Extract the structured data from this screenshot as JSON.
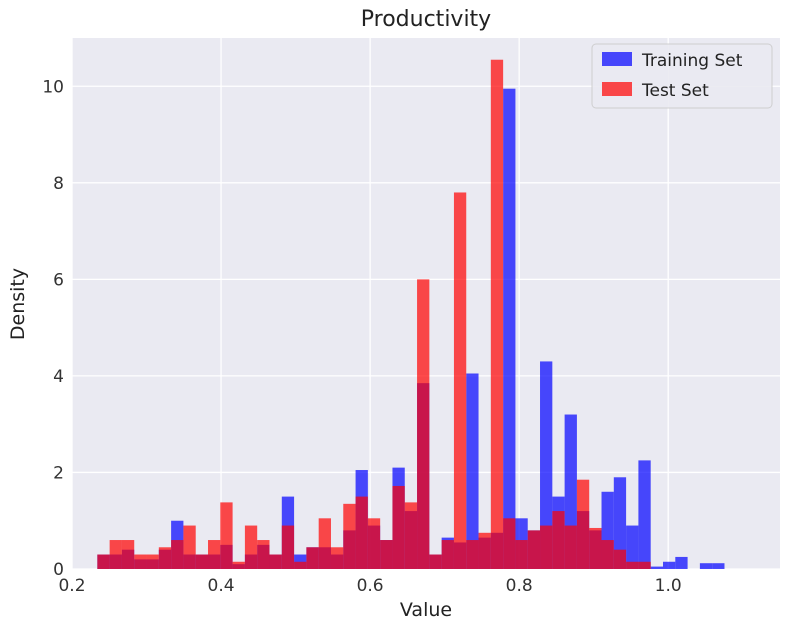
{
  "chart_data": {
    "type": "bar",
    "title": "Productivity",
    "xlabel": "Value",
    "ylabel": "Density",
    "xlim": [
      0.2,
      1.15
    ],
    "ylim": [
      0,
      11
    ],
    "x_ticks": [
      0.2,
      0.4,
      0.6,
      0.8,
      1.0
    ],
    "x_tick_labels": [
      "0.2",
      "0.4",
      "0.6",
      "0.8",
      "1.0"
    ],
    "y_ticks": [
      0,
      2,
      4,
      6,
      8,
      10
    ],
    "y_tick_labels": [
      "0",
      "2",
      "4",
      "6",
      "8",
      "10"
    ],
    "grid": true,
    "legend_position": "top-right",
    "bin_width": 0.0165,
    "bin_starts": [
      0.234,
      0.2505,
      0.267,
      0.2835,
      0.3,
      0.3165,
      0.333,
      0.3495,
      0.366,
      0.3825,
      0.399,
      0.4155,
      0.432,
      0.4485,
      0.465,
      0.4815,
      0.498,
      0.5145,
      0.531,
      0.5475,
      0.564,
      0.5805,
      0.597,
      0.6135,
      0.63,
      0.6465,
      0.663,
      0.6795,
      0.696,
      0.7125,
      0.729,
      0.7455,
      0.762,
      0.7785,
      0.795,
      0.8115,
      0.828,
      0.8445,
      0.861,
      0.8775,
      0.894,
      0.9105,
      0.927,
      0.9435,
      0.96,
      0.9765,
      0.993,
      1.0095,
      1.026,
      1.0425,
      1.059,
      1.0755,
      1.092
    ],
    "series": [
      {
        "name": "Training Set",
        "color": "#0000ff",
        "values": [
          0.3,
          0.3,
          0.4,
          0.2,
          0.2,
          0.4,
          1.0,
          0.3,
          0.3,
          0.3,
          0.5,
          0.1,
          0.3,
          0.5,
          0.3,
          1.5,
          0.3,
          0.45,
          0.45,
          0.3,
          0.8,
          2.05,
          0.9,
          0.6,
          2.1,
          1.2,
          3.85,
          0.3,
          0.65,
          0.55,
          4.05,
          0.65,
          0.75,
          9.95,
          1.05,
          0.8,
          4.3,
          1.5,
          3.2,
          1.2,
          0.8,
          1.6,
          1.9,
          0.9,
          2.25,
          0.05,
          0.15,
          0.25,
          0.0,
          0.12,
          0.12,
          0.0,
          0.0
        ]
      },
      {
        "name": "Test Set",
        "color": "#ff0000",
        "values": [
          0.3,
          0.6,
          0.6,
          0.3,
          0.3,
          0.45,
          0.6,
          0.9,
          0.3,
          0.6,
          1.38,
          0.15,
          0.9,
          0.6,
          0.3,
          0.9,
          0.15,
          0.45,
          1.05,
          0.45,
          1.35,
          1.5,
          1.05,
          0.6,
          1.72,
          1.38,
          6.0,
          0.3,
          0.6,
          7.8,
          0.6,
          0.75,
          10.55,
          1.05,
          0.6,
          0.8,
          0.9,
          1.2,
          0.9,
          1.85,
          0.85,
          0.6,
          0.4,
          0.15,
          0.15,
          0.0,
          0.0,
          0.0,
          0.0,
          0.0,
          0.0,
          0.0,
          0.0
        ]
      }
    ]
  }
}
